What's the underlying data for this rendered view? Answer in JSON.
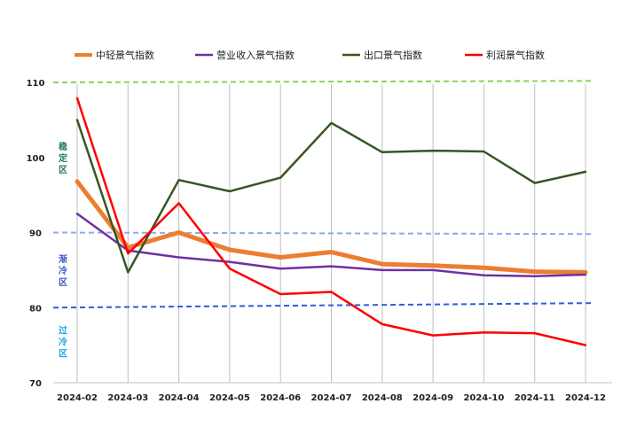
{
  "chart_data": {
    "type": "line",
    "categories": [
      "2024-02",
      "2024-03",
      "2024-04",
      "2024-05",
      "2024-06",
      "2024-07",
      "2024-08",
      "2024-09",
      "2024-10",
      "2024-11",
      "2024-12"
    ],
    "ylim": [
      70,
      110
    ],
    "yticks": [
      "110",
      "100",
      "90",
      "80",
      "70"
    ],
    "grid": "vertical lines at each category",
    "legend_position": "top",
    "series": [
      {
        "name": "中轻景气指数",
        "color": "#ED7D31",
        "width": 5,
        "values": [
          96.8,
          88.0,
          90.0,
          87.7,
          86.7,
          87.4,
          85.8,
          85.6,
          85.3,
          84.8,
          84.7
        ]
      },
      {
        "name": "营业收入景气指数",
        "color": "#7030A0",
        "width": 2.5,
        "values": [
          92.5,
          87.6,
          86.7,
          86.1,
          85.2,
          85.5,
          85.0,
          85.0,
          84.3,
          84.2,
          84.4
        ]
      },
      {
        "name": "出口景气指数",
        "color": "#375623",
        "width": 2.5,
        "values": [
          105.0,
          84.7,
          97.0,
          95.5,
          97.3,
          104.6,
          100.7,
          100.9,
          100.8,
          96.6,
          98.1
        ]
      },
      {
        "name": "利润景气指数",
        "color": "#FF0000",
        "width": 2.5,
        "values": [
          107.9,
          87.2,
          93.9,
          85.2,
          81.8,
          82.1,
          77.8,
          76.3,
          76.7,
          76.6,
          75.0
        ]
      }
    ],
    "reference_lines": [
      {
        "value_start": 110.0,
        "value_end": 110.2,
        "color": "#92D050"
      },
      {
        "value_start": 90.0,
        "value_end": 89.8,
        "color": "#8EA9F0"
      },
      {
        "value_start": 80.0,
        "value_end": 80.6,
        "color": "#2F5CE0"
      }
    ],
    "zones": [
      {
        "label": "稳定区",
        "color": "#1F7A5C",
        "value": 100
      },
      {
        "label": "渐冷区",
        "color": "#3A55C8",
        "value": 85
      },
      {
        "label": "过冷区",
        "color": "#1CA6E0",
        "value": 75.5
      }
    ]
  }
}
